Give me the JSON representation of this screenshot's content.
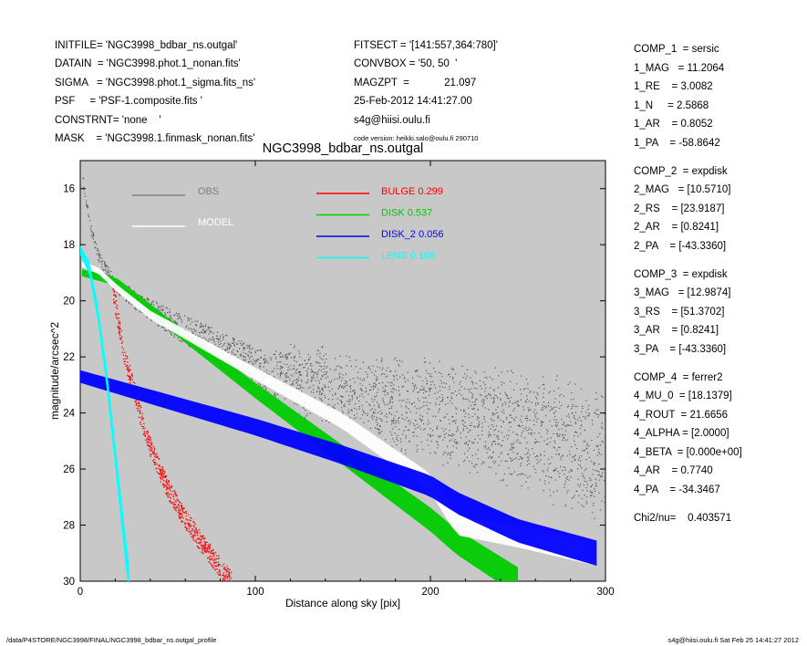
{
  "header_left": [
    "INITFILE= 'NGC3998_bdbar_ns.outgal'",
    "DATAIN  = 'NGC3998.phot.1_nonan.fits'",
    "SIGMA   = 'NGC3998.phot.1_sigma.fits_ns'",
    "PSF     = 'PSF-1.composite.fits '",
    "CONSTRNT= 'none    '",
    "MASK    = 'NGC3998.1.finmask_nonan.fits'"
  ],
  "header_mid": [
    "FITSECT = '[141:557,364:780]'",
    "CONVBOX = '50, 50  '",
    "MAGZPT  =            21.097",
    "25-Feb-2012 14:41:27.00",
    "s4g@hiisi.oulu.fi"
  ],
  "code_version": "code version: heikki.salo@oulu.fi 290710",
  "right_panel": [
    [
      "COMP_1  = sersic",
      "1_MAG   = 11.2064",
      "1_RE    = 3.0082",
      "1_N     = 2.5868",
      "1_AR    = 0.8052",
      "1_PA    = -58.8642"
    ],
    [
      "COMP_2  = expdisk",
      "2_MAG   = [10.5710]",
      "2_RS    = [23.9187]",
      "2_AR    = [0.8241]",
      "2_PA    = [-43.3360]"
    ],
    [
      "COMP_3  = expdisk",
      "3_MAG   = [12.9874]",
      "3_RS    = [51.3702]",
      "3_AR    = [0.8241]",
      "3_PA    = [-43.3360]"
    ],
    [
      "COMP_4  = ferrer2",
      "4_MU_0  = [18.1379]",
      "4_ROUT  = 21.6656",
      "4_ALPHA = [2.0000]",
      "4_BETA  = [0.000e+00]",
      "4_AR    = 0.7740",
      "4_PA    = -34.3467"
    ],
    [
      "Chi2/nu=    0.403571"
    ]
  ],
  "footer_left": "/data/P4STORE/NGC3998/FINAL/NGC3998_bdbar_ns.outgal_profile",
  "footer_right": "s4g@hiisi.oulu.fi  Sat Feb 25 14:41:27 2012",
  "chart_data": {
    "type": "scatter",
    "title": "NGC3998_bdbar_ns.outgal",
    "xlabel": "Distance along sky [pix]",
    "ylabel": "magnitude/arcsec^2",
    "xlim": [
      0,
      300
    ],
    "ylim": [
      30,
      15
    ],
    "y_inverted": true,
    "x_ticks": [
      0,
      100,
      200,
      300
    ],
    "y_ticks": [
      16,
      18,
      20,
      22,
      24,
      26,
      28,
      30
    ],
    "background": "#c8c8c8",
    "legend_left": [
      {
        "label": "OBS",
        "color": "#808080"
      },
      {
        "label": "MODEL",
        "color": "#ffffff"
      }
    ],
    "series": [
      {
        "name": "BULGE",
        "fraction": "0.299",
        "color": "#ff0000"
      },
      {
        "name": "DISK",
        "fraction": "0.537",
        "color": "#00cc00"
      },
      {
        "name": "DISK_2",
        "fraction": "0.056",
        "color": "#0000ff"
      },
      {
        "name": "LENS",
        "fraction": "0.108",
        "color": "#00ffff"
      }
    ],
    "profiles": {
      "OBS": {
        "x": [
          1,
          5,
          10,
          20,
          30,
          50,
          80,
          100,
          150,
          200,
          250,
          300
        ],
        "y": [
          15.5,
          17.2,
          18.4,
          19.4,
          19.9,
          20.7,
          21.7,
          22.4,
          23.2,
          23.9,
          24.6,
          25.5
        ]
      },
      "MODEL": {
        "x": [
          1,
          10,
          20,
          40,
          60,
          100,
          150,
          200,
          215,
          250,
          295
        ],
        "y": [
          18.7,
          18.9,
          19.5,
          20.5,
          21.2,
          22.6,
          24.3,
          26.5,
          28.0,
          28.4,
          29.0
        ]
      },
      "BULGE": {
        "x": [
          18,
          25,
          30,
          35,
          40,
          45,
          50,
          60,
          70,
          80,
          86
        ],
        "y": [
          19.4,
          22.0,
          23.0,
          24.3,
          25.2,
          26.0,
          26.7,
          27.8,
          28.7,
          29.5,
          30.0
        ]
      },
      "DISK": {
        "x": [
          1,
          20,
          50,
          100,
          150,
          200,
          215,
          240,
          250
        ],
        "y": [
          19.0,
          19.3,
          20.8,
          23.2,
          25.5,
          27.8,
          28.6,
          29.6,
          30.0
        ]
      },
      "DISK_2": {
        "x": [
          0,
          50,
          100,
          150,
          200,
          215,
          250,
          295
        ],
        "y": [
          22.7,
          23.6,
          24.5,
          25.5,
          26.6,
          27.2,
          28.2,
          29.0
        ]
      },
      "LENS": {
        "x": [
          0,
          5,
          10,
          15,
          20,
          25,
          28
        ],
        "y": [
          18.2,
          18.8,
          20.4,
          22.7,
          25.5,
          28.4,
          30.0
        ]
      }
    }
  }
}
